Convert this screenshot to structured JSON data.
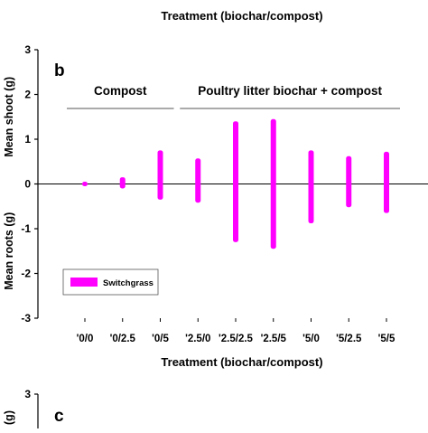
{
  "top_title": "Treatment (biochar/compost)",
  "chart_data": [
    {
      "panel_label": "b",
      "type": "bar",
      "style": "floating range bars",
      "categories": [
        "'0/0",
        "'0/2.5",
        "'0/5",
        "'2.5/0",
        "'2.5/2.5",
        "'2.5/5",
        "'5/0",
        "'5/2.5",
        "'5/5"
      ],
      "series": [
        {
          "name": "Switchgrass",
          "color": "#ff00ff",
          "shoot": [
            0.05,
            0.15,
            0.75,
            0.57,
            1.4,
            1.45,
            0.75,
            0.62,
            0.72
          ],
          "roots": [
            -0.05,
            -0.1,
            -0.35,
            -0.42,
            -1.3,
            -1.45,
            -0.88,
            -0.52,
            -0.65
          ]
        }
      ],
      "xlabel": "Treatment (biochar/compost)",
      "ylabel_upper": "Mean shoot (g)",
      "ylabel_lower": "Mean roots (g)",
      "ylim": [
        -3,
        3
      ],
      "yticks": [
        "-3",
        "-2",
        "-1",
        "0",
        "1",
        "2",
        "3"
      ],
      "group_labels": [
        {
          "text": "Compost",
          "first": 0,
          "last": 2
        },
        {
          "text": "Poultry litter biochar + compost",
          "first": 3,
          "last": 8
        }
      ],
      "legend": {
        "label": "Switchgrass",
        "position": "bottom-left"
      },
      "grid": false,
      "zero_line": true
    },
    {
      "panel_label": "c",
      "ylim": [
        -3,
        3
      ],
      "yticks": [
        "3"
      ],
      "ylabel_upper": "(g)"
    }
  ]
}
